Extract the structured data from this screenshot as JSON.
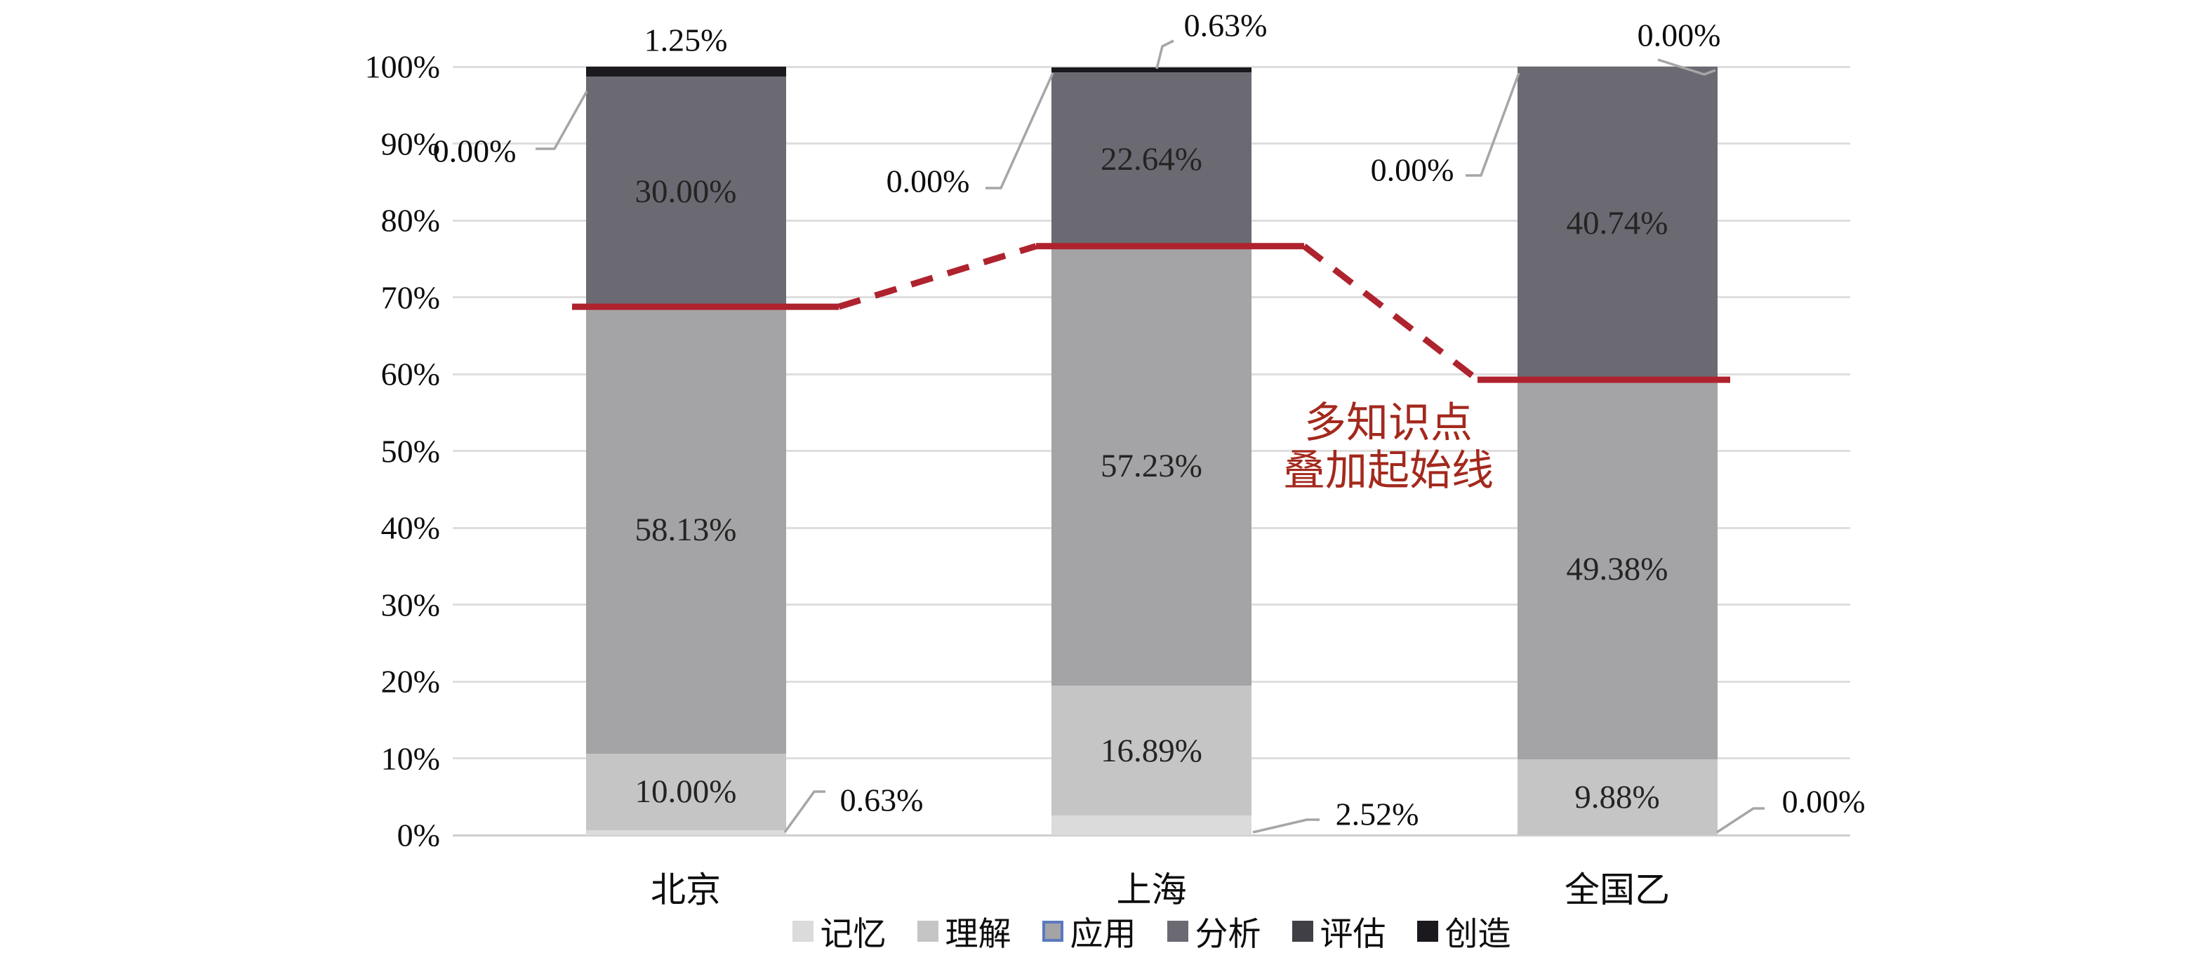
{
  "chart_data": {
    "type": "bar",
    "variant": "stacked-column",
    "title": "",
    "xlabel": "",
    "ylabel": "",
    "ylim": [
      0,
      100
    ],
    "grid": true,
    "legend_position": "bottom",
    "categories": [
      "北京",
      "上海",
      "全国乙"
    ],
    "series": [
      {
        "key": "remember",
        "name": "记忆",
        "color": "#dcdbdb",
        "values": [
          0.63,
          2.52,
          0.0
        ],
        "labels": [
          "0.63%",
          "2.52%",
          "0.00%"
        ]
      },
      {
        "key": "understand",
        "name": "理解",
        "color": "#c6c5c5",
        "values": [
          10.0,
          16.89,
          9.88
        ],
        "labels": [
          "10.00%",
          "16.89%",
          "9.88%"
        ]
      },
      {
        "key": "apply",
        "name": "应用",
        "color": "#a4a3a5",
        "values": [
          58.13,
          57.23,
          49.38
        ],
        "labels": [
          "58.13%",
          "57.23%",
          "49.38%"
        ],
        "legend_border": "#5b79c0"
      },
      {
        "key": "analyze",
        "name": "分析",
        "color": "#6b6a72",
        "values": [
          30.0,
          22.64,
          40.74
        ],
        "labels": [
          "30.00%",
          "22.64%",
          "40.74%"
        ]
      },
      {
        "key": "evaluate",
        "name": "评估",
        "color": "#403f45",
        "values": [
          0.0,
          0.0,
          0.0
        ],
        "labels": [
          "0.00%",
          "0.00%",
          "0.00%"
        ]
      },
      {
        "key": "create",
        "name": "创造",
        "color": "#1b191e",
        "values": [
          1.25,
          0.63,
          0.0
        ],
        "labels": [
          "1.25%",
          "0.63%",
          "0.00%"
        ]
      }
    ],
    "y_ticks": [
      "0%",
      "10%",
      "20%",
      "30%",
      "40%",
      "50%",
      "60%",
      "70%",
      "80%",
      "90%",
      "100%"
    ],
    "callouts": [
      {
        "id": "bj-create",
        "category": "北京",
        "series": "创造",
        "text": "1.25%"
      },
      {
        "id": "bj-evaluate",
        "category": "北京",
        "series": "评估",
        "text": "0.00%"
      },
      {
        "id": "bj-remember",
        "category": "北京",
        "series": "记忆",
        "text": "0.63%"
      },
      {
        "id": "sh-create",
        "category": "上海",
        "series": "创造",
        "text": "0.63%"
      },
      {
        "id": "sh-evaluate",
        "category": "上海",
        "series": "评估",
        "text": "0.00%"
      },
      {
        "id": "sh-remember",
        "category": "上海",
        "series": "记忆",
        "text": "2.52%"
      },
      {
        "id": "qg-create",
        "category": "全国乙",
        "series": "创造",
        "text": "0.00%"
      },
      {
        "id": "qg-evaluate",
        "category": "全国乙",
        "series": "评估",
        "text": "0.00%"
      },
      {
        "id": "qg-remember",
        "category": "全国乙",
        "series": "记忆",
        "text": "0.00%"
      }
    ],
    "annotation": {
      "lines": [
        "多知识点",
        "叠加起始线"
      ],
      "text_color": "#a3291d",
      "line_color": "#ae232e",
      "line_values": [
        68.76,
        76.64,
        59.26
      ]
    }
  }
}
